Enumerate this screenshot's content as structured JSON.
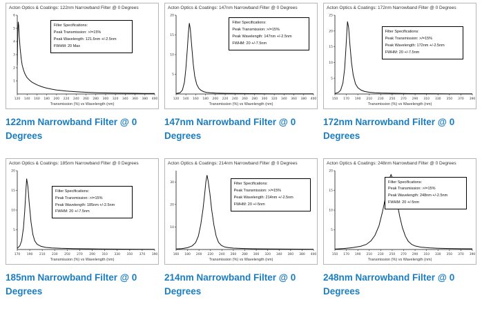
{
  "accent_color": "#1a7dc0",
  "chart_data": [
    {
      "type": "line",
      "title": "Acton Optics & Coatings: 122nm Narrowband Filter @ 0 Degrees",
      "caption": "122nm Narrowband Filter @ 0 Degrees",
      "xlabel": "Transmission (%) vs Wavelength (nm)",
      "spec": [
        "Filter Specifications:",
        "Peak Transmission: >/=15%",
        "Peak Wavelength: 121.6nm +/-2.5nm",
        "FWHM: 20 Max"
      ],
      "xlim": [
        120,
        400
      ],
      "ylim": [
        0,
        6
      ],
      "x_ticks": [
        120,
        140,
        160,
        180,
        200,
        220,
        240,
        260,
        280,
        300,
        320,
        340,
        360,
        380,
        400
      ],
      "y_ticks": [
        1,
        2,
        3,
        4,
        5,
        6
      ],
      "points": [
        [
          120,
          2.2
        ],
        [
          121,
          4.6
        ],
        [
          122,
          5.5
        ],
        [
          123,
          5.2
        ],
        [
          124,
          4.4
        ],
        [
          126,
          3.4
        ],
        [
          128,
          2.7
        ],
        [
          130,
          2.2
        ],
        [
          133,
          1.8
        ],
        [
          136,
          1.5
        ],
        [
          140,
          1.25
        ],
        [
          145,
          1.05
        ],
        [
          150,
          0.9
        ],
        [
          160,
          0.7
        ],
        [
          170,
          0.55
        ],
        [
          180,
          0.45
        ],
        [
          190,
          0.37
        ],
        [
          200,
          0.3
        ],
        [
          220,
          0.22
        ],
        [
          240,
          0.17
        ],
        [
          260,
          0.13
        ],
        [
          280,
          0.1
        ],
        [
          300,
          0.08
        ],
        [
          320,
          0.07
        ],
        [
          340,
          0.06
        ],
        [
          360,
          0.05
        ],
        [
          380,
          0.04
        ],
        [
          400,
          0.04
        ]
      ],
      "spec_box": {
        "left_pct": 29,
        "top_pct": 10,
        "width_pct": 54
      }
    },
    {
      "type": "line",
      "title": "Acton Optics & Coatings: 147nm Narrowband Filter @ 0 Degrees",
      "caption": "147nm Narrowband Filter @ 0 Degrees",
      "xlabel": "Transmission (%) vs Wavelength (nm)",
      "spec": [
        "Filter Specifications:",
        "Peak Transmission: >/=15%",
        "Peak Wavelength: 147nm +/-2.5nm",
        "FWHM: 20 +/-7.5nm"
      ],
      "xlim": [
        120,
        400
      ],
      "ylim": [
        0,
        20
      ],
      "x_ticks": [
        120,
        140,
        160,
        180,
        200,
        220,
        240,
        260,
        280,
        300,
        320,
        340,
        360,
        380,
        400
      ],
      "y_ticks": [
        5,
        10,
        15,
        20
      ],
      "points": [
        [
          120,
          0.1
        ],
        [
          128,
          0.3
        ],
        [
          133,
          1
        ],
        [
          137,
          3
        ],
        [
          140,
          6.5
        ],
        [
          143,
          11.5
        ],
        [
          145,
          15.5
        ],
        [
          147,
          18
        ],
        [
          149,
          16.5
        ],
        [
          152,
          12
        ],
        [
          155,
          7.5
        ],
        [
          158,
          4.5
        ],
        [
          162,
          2.5
        ],
        [
          166,
          1.5
        ],
        [
          170,
          1
        ],
        [
          176,
          0.6
        ],
        [
          182,
          0.4
        ],
        [
          190,
          0.3
        ],
        [
          200,
          0.22
        ],
        [
          220,
          0.15
        ],
        [
          240,
          0.12
        ],
        [
          260,
          0.1
        ],
        [
          280,
          0.08
        ],
        [
          300,
          0.07
        ],
        [
          320,
          0.06
        ],
        [
          340,
          0.05
        ],
        [
          360,
          0.05
        ],
        [
          380,
          0.04
        ],
        [
          400,
          0.04
        ]
      ],
      "spec_box": {
        "left_pct": 42,
        "top_pct": 7,
        "width_pct": 53
      }
    },
    {
      "type": "line",
      "title": "Acton Optics & Coatings: 172nm Narrowband Filter @ 0 Degrees",
      "caption": "172nm Narrowband Filter @ 0 Degrees",
      "xlabel": "Transmission (%) vs Wavelength (nm)",
      "spec": [
        "Filter Specifications:",
        "Peak Transmission: >/=15%",
        "Peak Wavelength: 172nm +/-2.5nm",
        "FWHM: 20 +/-7.5nm"
      ],
      "xlim": [
        150,
        390
      ],
      "ylim": [
        0,
        25
      ],
      "x_ticks": [
        150,
        170,
        190,
        210,
        230,
        250,
        270,
        290,
        310,
        330,
        350,
        370,
        390
      ],
      "y_ticks": [
        5,
        10,
        15,
        20,
        25
      ],
      "points": [
        [
          150,
          0.15
        ],
        [
          156,
          0.5
        ],
        [
          160,
          1.2
        ],
        [
          164,
          3.5
        ],
        [
          167,
          8
        ],
        [
          169,
          14
        ],
        [
          171,
          20
        ],
        [
          172,
          23
        ],
        [
          174,
          21
        ],
        [
          176,
          16
        ],
        [
          179,
          10
        ],
        [
          182,
          6
        ],
        [
          186,
          3.2
        ],
        [
          190,
          2
        ],
        [
          196,
          1.2
        ],
        [
          202,
          0.8
        ],
        [
          210,
          0.55
        ],
        [
          220,
          0.4
        ],
        [
          230,
          0.3
        ],
        [
          250,
          0.22
        ],
        [
          270,
          0.16
        ],
        [
          290,
          0.12
        ],
        [
          310,
          0.1
        ],
        [
          330,
          0.08
        ],
        [
          350,
          0.06
        ],
        [
          370,
          0.05
        ],
        [
          390,
          0.05
        ]
      ],
      "spec_box": {
        "left_pct": 38,
        "top_pct": 17,
        "width_pct": 54
      }
    },
    {
      "type": "line",
      "title": "Acton Optics & Coatings: 185nm Narrowband Filter @ 0 Degrees",
      "caption": "185nm Narrowband Filter @ 0 Degrees",
      "xlabel": "Transmission (%) vs Wavelength (nm)",
      "spec": [
        "Filter Specifications:",
        "Peak Transmission: >/=15%",
        "Peak Wavelength: 185nm +/-2.5nm",
        "FWHM: 20 +/-7.5nm"
      ],
      "xlim": [
        170,
        390
      ],
      "ylim": [
        0,
        20
      ],
      "x_ticks": [
        170,
        190,
        210,
        230,
        250,
        270,
        290,
        310,
        330,
        350,
        370,
        390
      ],
      "y_ticks": [
        5,
        10,
        15,
        20
      ],
      "points": [
        [
          170,
          0.3
        ],
        [
          174,
          0.9
        ],
        [
          177,
          2.2
        ],
        [
          180,
          5.5
        ],
        [
          182,
          10
        ],
        [
          184,
          15.5
        ],
        [
          185,
          18
        ],
        [
          187,
          16
        ],
        [
          189,
          12
        ],
        [
          192,
          7
        ],
        [
          195,
          3.8
        ],
        [
          198,
          2.2
        ],
        [
          202,
          1.3
        ],
        [
          208,
          0.8
        ],
        [
          215,
          0.55
        ],
        [
          225,
          0.4
        ],
        [
          240,
          0.3
        ],
        [
          260,
          0.22
        ],
        [
          280,
          0.17
        ],
        [
          300,
          0.13
        ],
        [
          320,
          0.1
        ],
        [
          340,
          0.08
        ],
        [
          360,
          0.07
        ],
        [
          390,
          0.06
        ]
      ],
      "spec_box": {
        "left_pct": 30,
        "top_pct": 21,
        "width_pct": 53
      }
    },
    {
      "type": "line",
      "title": "Acton Optics & Coatings: 214nm Narrowband Filter @ 0 Degrees",
      "caption": "214nm Narrowband Filter @ 0 Degrees",
      "xlabel": "Transmission (%) vs Wavelength (nm)",
      "spec": [
        "Filter Specifications:",
        "Peak Transmission: >/=15%",
        "Peak Wavelength: 214nm +/-2.5nm",
        "FWHM: 20 +/-5nm"
      ],
      "xlim": [
        160,
        400
      ],
      "ylim": [
        0,
        35
      ],
      "x_ticks": [
        160,
        180,
        200,
        220,
        240,
        260,
        280,
        300,
        320,
        340,
        360,
        380,
        400
      ],
      "y_ticks": [
        10,
        20,
        30
      ],
      "points": [
        [
          160,
          0.2
        ],
        [
          170,
          0.4
        ],
        [
          180,
          0.8
        ],
        [
          188,
          1.6
        ],
        [
          194,
          3
        ],
        [
          199,
          6
        ],
        [
          203,
          11
        ],
        [
          207,
          18
        ],
        [
          210,
          25
        ],
        [
          212,
          30
        ],
        [
          214,
          33
        ],
        [
          216,
          30.5
        ],
        [
          219,
          25
        ],
        [
          222,
          18
        ],
        [
          226,
          11
        ],
        [
          230,
          6
        ],
        [
          234,
          3.2
        ],
        [
          239,
          1.8
        ],
        [
          245,
          1.1
        ],
        [
          252,
          0.8
        ],
        [
          260,
          0.6
        ],
        [
          275,
          0.45
        ],
        [
          290,
          0.35
        ],
        [
          310,
          0.28
        ],
        [
          330,
          0.22
        ],
        [
          350,
          0.18
        ],
        [
          375,
          0.15
        ],
        [
          400,
          0.12
        ]
      ],
      "spec_box": {
        "left_pct": 43,
        "top_pct": 13,
        "width_pct": 53
      }
    },
    {
      "type": "line",
      "title": "Acton Optics & Coatings: 248nm Narrowband Filter @ 0 Degrees",
      "caption": "248nm Narrowband Filter @ 0 Degrees",
      "xlabel": "Transmission (%) vs Wavelength (nm)",
      "spec": [
        "Filter Specifications:",
        "Peak Transmission: >/=15%",
        "Peak Wavelength: 248nm +/-2.5nm",
        "FWHM: 20 +/-5nm"
      ],
      "xlim": [
        150,
        390
      ],
      "ylim": [
        0,
        20
      ],
      "x_ticks": [
        150,
        170,
        190,
        210,
        230,
        250,
        270,
        290,
        310,
        330,
        350,
        370,
        390
      ],
      "y_ticks": [
        5,
        10,
        15,
        20
      ],
      "points": [
        [
          150,
          0.1
        ],
        [
          165,
          0.25
        ],
        [
          180,
          0.45
        ],
        [
          195,
          0.8
        ],
        [
          205,
          1.3
        ],
        [
          213,
          2.2
        ],
        [
          220,
          3.6
        ],
        [
          227,
          6
        ],
        [
          233,
          9.5
        ],
        [
          238,
          13
        ],
        [
          242,
          16
        ],
        [
          245,
          18
        ],
        [
          248,
          19
        ],
        [
          251,
          18
        ],
        [
          254,
          16
        ],
        [
          258,
          12.5
        ],
        [
          263,
          8.5
        ],
        [
          268,
          5.5
        ],
        [
          273,
          3.4
        ],
        [
          278,
          2.1
        ],
        [
          284,
          1.3
        ],
        [
          290,
          0.9
        ],
        [
          300,
          0.6
        ],
        [
          315,
          0.42
        ],
        [
          330,
          0.32
        ],
        [
          350,
          0.25
        ],
        [
          370,
          0.2
        ],
        [
          390,
          0.18
        ]
      ],
      "spec_box": {
        "left_pct": 40,
        "top_pct": 11,
        "width_pct": 54
      }
    }
  ]
}
